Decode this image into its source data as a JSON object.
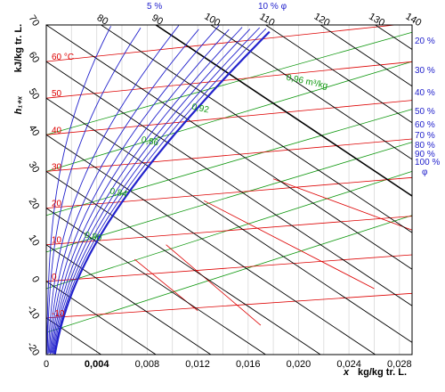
{
  "chart_data": {
    "type": "line",
    "title": "",
    "xlabel_symbol": "x",
    "xlabel_unit": "kg/kg tr. L.",
    "ylabel_symbol": "h₁₊ₓ",
    "ylabel_unit": "kJ/kg tr. L.",
    "xlim": [
      0,
      0.029
    ],
    "ylim": [
      -20,
      70
    ],
    "x_ticks": [
      "0",
      "0,004",
      "0,008",
      "0,012",
      "0,016",
      "0,020",
      "0,024",
      "0,028"
    ],
    "x_bold_tick": "0,004",
    "y_ticks": [
      "-20",
      "-10",
      "0",
      "10",
      "20",
      "30",
      "40",
      "50",
      "60",
      "70"
    ],
    "top_ticks": [
      "80",
      "90",
      "100",
      "110",
      "120",
      "130",
      "140"
    ],
    "grid": true,
    "colors": {
      "enthalpy_lines": "#000000",
      "temperature_lines": "#dd0000",
      "volume_lines": "#119911",
      "humidity_lines": "#2222cc"
    },
    "temperature_lines": {
      "unit": "°C",
      "labels": [
        "60 °C",
        "50",
        "40",
        "30",
        "20",
        "10",
        "0",
        "-10"
      ],
      "values": [
        60,
        50,
        40,
        30,
        20,
        10,
        0,
        -10
      ]
    },
    "specific_volume_lines": {
      "labels": [
        "0,96 m³/kg",
        "0,92",
        "0,86",
        "0,84",
        "0,80"
      ],
      "values": [
        0.96,
        0.92,
        0.86,
        0.84,
        0.8
      ]
    },
    "relative_humidity_curves": {
      "top_labels": [
        "5 %",
        "10 % φ"
      ],
      "right_labels": [
        "20 %",
        "30 %",
        "40 %",
        "50 %",
        "60 %",
        "70 %",
        "80 %",
        "90 %",
        "100 %"
      ],
      "symbol": "φ",
      "values": [
        5,
        10,
        20,
        30,
        40,
        50,
        60,
        70,
        80,
        90,
        100
      ]
    }
  }
}
